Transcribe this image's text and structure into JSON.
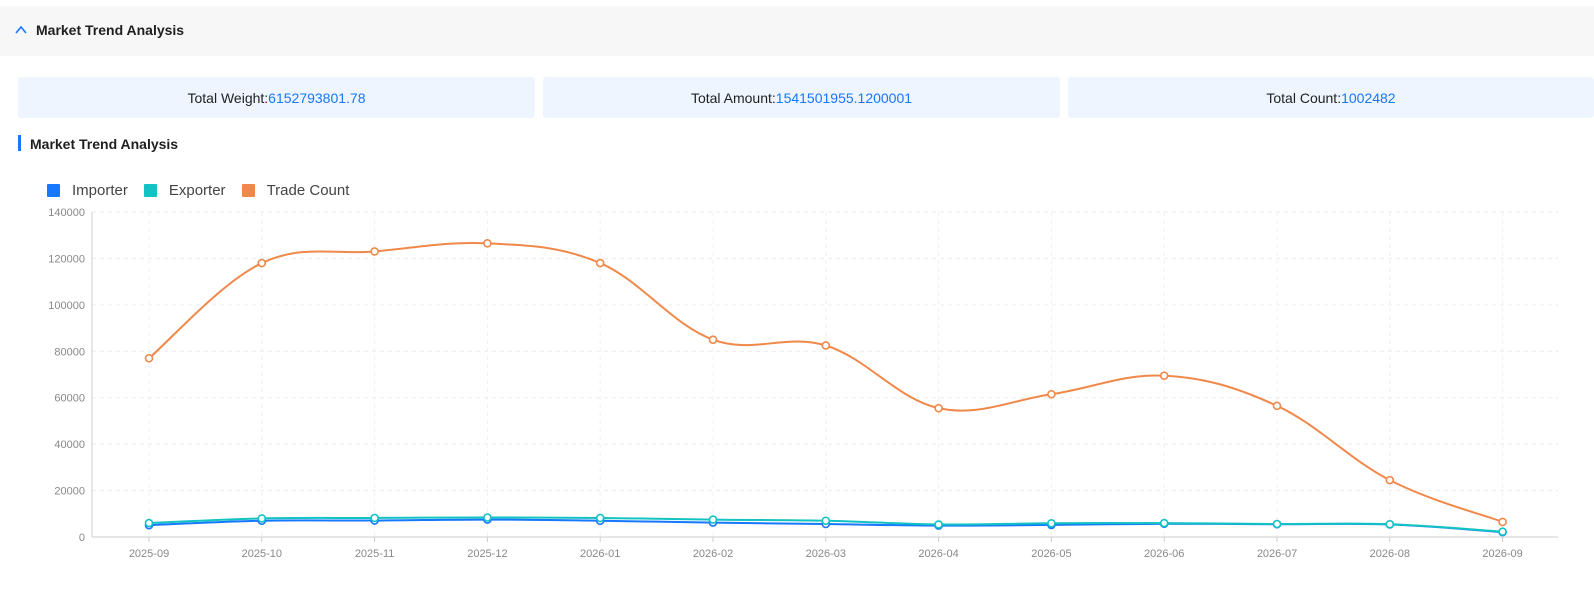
{
  "header": {
    "title": "Market Trend Analysis"
  },
  "stats": [
    {
      "label": "Total Weight:",
      "value": "6152793801.78"
    },
    {
      "label": "Total Amount:",
      "value": "1541501955.1200001"
    },
    {
      "label": "Total Count:",
      "value": "1002482"
    }
  ],
  "chart_title": "Market Trend Analysis",
  "icons": {
    "collapse": "chevron-up-icon"
  },
  "chart_data": {
    "type": "line",
    "x": [
      "2025-09",
      "2025-10",
      "2025-11",
      "2025-12",
      "2026-01",
      "2026-02",
      "2026-03",
      "2026-04",
      "2026-05",
      "2026-06",
      "2026-07",
      "2026-08",
      "2026-09"
    ],
    "ylim": [
      0,
      140000
    ],
    "yticks": [
      0,
      20000,
      40000,
      60000,
      80000,
      100000,
      120000,
      140000
    ],
    "grid": true,
    "legend": "top-left",
    "series": [
      {
        "name": "Importer",
        "color": "#1677ff",
        "values": [
          5100,
          7000,
          7100,
          7500,
          7000,
          6200,
          5600,
          4900,
          5200,
          5700,
          5500,
          5400,
          2100
        ]
      },
      {
        "name": "Exporter",
        "color": "#13c2c2",
        "values": [
          6000,
          8000,
          8200,
          8400,
          8200,
          7500,
          7000,
          5400,
          5900,
          6000,
          5600,
          5500,
          2300
        ]
      },
      {
        "name": "Trade Count",
        "color": "#f0884a",
        "values": [
          77000,
          118000,
          123000,
          126500,
          118000,
          85000,
          82500,
          55500,
          61500,
          69500,
          56500,
          24500,
          6500
        ]
      }
    ]
  }
}
